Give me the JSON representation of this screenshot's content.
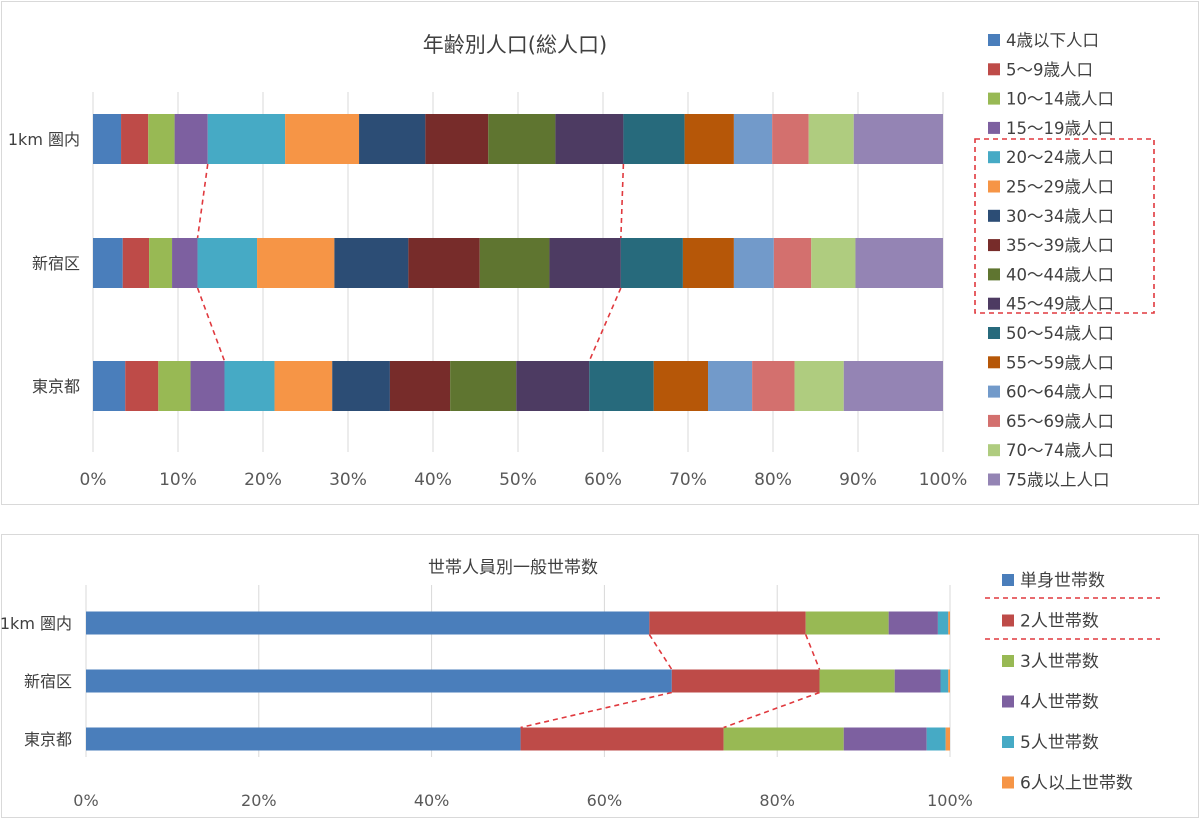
{
  "chart_data": [
    {
      "type": "bar",
      "orientation": "horizontal",
      "stacked": "percent",
      "title": "年齢別人口(総人口)",
      "categories": [
        "1km 圏内",
        "新宿区",
        "東京都"
      ],
      "xlim": [
        0,
        100
      ],
      "x_ticks": [
        "0%",
        "10%",
        "20%",
        "30%",
        "40%",
        "50%",
        "60%",
        "70%",
        "80%",
        "90%",
        "100%"
      ],
      "grid": true,
      "legend_position": "right",
      "highlight_legend_range": [
        4,
        9
      ],
      "guide_lines_between_series": [
        3,
        9
      ],
      "series": [
        {
          "name": "4歳以下人口",
          "color": "#4a7ebb",
          "values": [
            3.3,
            3.5,
            3.8
          ]
        },
        {
          "name": "5～9歳人口",
          "color": "#be4b48",
          "values": [
            3.2,
            3.1,
            3.9
          ]
        },
        {
          "name": "10～14歳人口",
          "color": "#98b954",
          "values": [
            3.1,
            2.7,
            3.8
          ]
        },
        {
          "name": "15～19歳人口",
          "color": "#7d60a0",
          "values": [
            3.9,
            3.0,
            4.0
          ]
        },
        {
          "name": "20～24歳人口",
          "color": "#46aac5",
          "values": [
            9.1,
            7.0,
            5.9
          ]
        },
        {
          "name": "25～29歳人口",
          "color": "#f69546",
          "values": [
            8.7,
            9.1,
            6.8
          ]
        },
        {
          "name": "30～34歳人口",
          "color": "#2c4d75",
          "values": [
            7.8,
            8.7,
            6.8
          ]
        },
        {
          "name": "35～39歳人口",
          "color": "#772c2a",
          "values": [
            7.4,
            8.4,
            7.1
          ]
        },
        {
          "name": "40～44歳人口",
          "color": "#5f7530",
          "values": [
            7.9,
            8.2,
            7.8
          ]
        },
        {
          "name": "45～49歳人口",
          "color": "#4d3b62",
          "values": [
            8.0,
            8.4,
            8.6
          ]
        },
        {
          "name": "50～54歳人口",
          "color": "#276a7c",
          "values": [
            7.2,
            7.3,
            7.6
          ]
        },
        {
          "name": "55～59歳人口",
          "color": "#b65708",
          "values": [
            5.8,
            6.0,
            6.4
          ]
        },
        {
          "name": "60～64歳人口",
          "color": "#729aca",
          "values": [
            4.5,
            4.7,
            5.2
          ]
        },
        {
          "name": "65～69歳人口",
          "color": "#d3706e",
          "values": [
            4.3,
            4.4,
            5.0
          ]
        },
        {
          "name": "70～74歳人口",
          "color": "#afcc7f",
          "values": [
            5.3,
            5.2,
            5.8
          ]
        },
        {
          "name": "75歳以上人口",
          "color": "#9484b4",
          "values": [
            10.5,
            10.3,
            11.7
          ]
        }
      ]
    },
    {
      "type": "bar",
      "orientation": "horizontal",
      "stacked": "percent",
      "title": "世帯人員別一般世帯数",
      "categories": [
        "1km 圏内",
        "新宿区",
        "東京都"
      ],
      "xlim": [
        0,
        100
      ],
      "x_ticks": [
        "0%",
        "20%",
        "40%",
        "60%",
        "80%",
        "100%"
      ],
      "grid": true,
      "legend_position": "right",
      "highlight_legend_range": [
        1,
        1
      ],
      "guide_lines_between_series": [
        0,
        1
      ],
      "series": [
        {
          "name": "単身世帯数",
          "color": "#4a7ebb",
          "values": [
            65.2,
            67.8,
            50.3
          ]
        },
        {
          "name": "2人世帯数",
          "color": "#be4b48",
          "values": [
            18.1,
            17.1,
            23.5
          ]
        },
        {
          "name": "3人世帯数",
          "color": "#98b954",
          "values": [
            9.6,
            8.7,
            13.9
          ]
        },
        {
          "name": "4人世帯数",
          "color": "#7d60a0",
          "values": [
            5.7,
            5.3,
            9.6
          ]
        },
        {
          "name": "5人世帯数",
          "color": "#46aac5",
          "values": [
            1.2,
            0.9,
            2.2
          ]
        },
        {
          "name": "6人以上世帯数",
          "color": "#f69546",
          "values": [
            0.2,
            0.2,
            0.5
          ]
        }
      ]
    }
  ]
}
